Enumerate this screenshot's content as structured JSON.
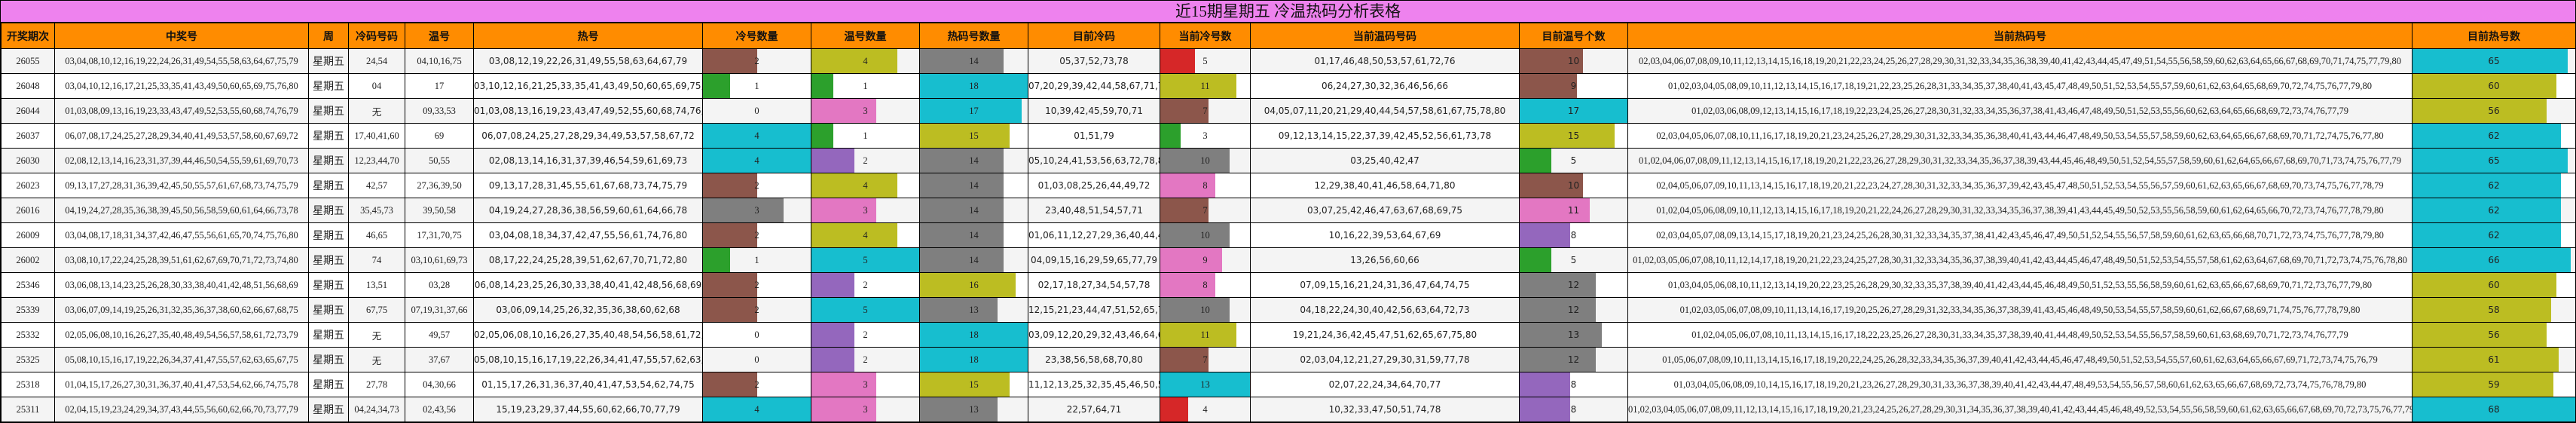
{
  "title": "近15期星期五 冷温热码分析表格",
  "columns": [
    "开奖期次",
    "中奖号",
    "周",
    "冷码号码",
    "温号",
    "热号",
    "冷号数量",
    "温号数量",
    "热码号数量",
    "目前冷码",
    "当前冷号数",
    "当前温码号码",
    "目前温号个数",
    "当前热码号",
    "目前热号数"
  ],
  "bar_max": {
    "cold_count": 4,
    "warm_count": 5,
    "hot_count": 18,
    "cur_cold_count": 13,
    "cur_warm_count": 17,
    "cur_hot_count": 68
  },
  "palette": {
    "green": "#2ca02c",
    "brown": "#8c564b",
    "gray": "#7f7f7f",
    "cyan": "#17becf",
    "olive": "#bcbd22",
    "pink": "#e377c2",
    "purple": "#9467bd",
    "red": "#d62728"
  },
  "rows": [
    {
      "period": "26055",
      "winning": "03,04,08,10,12,16,19,22,24,26,31,49,54,55,58,63,64,67,75,79",
      "week": "星期五",
      "cold_nums": "24,54",
      "warm_nums": "04,10,16,75",
      "hot_nums": "03,08,12,19,22,26,31,49,55,58,63,64,67,79",
      "cold_count": 2,
      "cold_color": "#8c564b",
      "warm_count": 4,
      "warm_color": "#bcbd22",
      "hot_count": 14,
      "hot_color": "#7f7f7f",
      "cur_cold": "05,37,52,73,78",
      "cur_cold_count": 5,
      "cur_cold_color": "#d62728",
      "cur_warm": "01,17,46,48,50,53,57,61,72,76",
      "cur_warm_count": 10,
      "cur_warm_color": "#8c564b",
      "cur_hot": "02,03,04,06,07,08,09,10,11,12,13,14,15,16,18,19,20,21,22,23,24,25,26,27,28,29,30,31,32,33,34,35,36,38,39,40,41,42,43,44,45,47,49,51,54,55,56,58,59,60,62,63,64,65,66,67,68,69,70,71,74,75,77,79,80",
      "cur_hot_count": 65,
      "cur_hot_color": "#17becf"
    },
    {
      "period": "26048",
      "winning": "03,04,10,12,16,17,21,25,33,35,41,43,49,50,60,65,69,75,76,80",
      "week": "星期五",
      "cold_nums": "04",
      "warm_nums": "17",
      "hot_nums": "03,10,12,16,21,25,33,35,41,43,49,50,60,65,69,75,76,80",
      "cold_count": 1,
      "cold_color": "#2ca02c",
      "warm_count": 1,
      "warm_color": "#2ca02c",
      "hot_count": 18,
      "hot_color": "#17becf",
      "cur_cold": "07,20,29,39,42,44,58,67,71,73,78",
      "cur_cold_count": 11,
      "cur_cold_color": "#bcbd22",
      "cur_warm": "06,24,27,30,32,36,46,56,66",
      "cur_warm_count": 9,
      "cur_warm_color": "#8c564b",
      "cur_hot": "01,02,03,04,05,08,09,10,11,12,13,14,15,16,17,18,19,21,22,23,25,26,28,31,33,34,35,37,38,40,41,43,45,47,48,49,50,51,52,53,54,55,57,59,60,61,62,63,64,65,68,69,70,72,74,75,76,77,79,80",
      "cur_hot_count": 60,
      "cur_hot_color": "#bcbd22"
    },
    {
      "period": "26044",
      "winning": "01,03,08,09,13,16,19,23,33,43,47,49,52,53,55,60,68,74,76,79",
      "week": "星期五",
      "cold_nums": "无",
      "warm_nums": "09,33,53",
      "hot_nums": "01,03,08,13,16,19,23,43,47,49,52,55,60,68,74,76,79",
      "cold_count": 0,
      "cold_color": "#ffffff",
      "warm_count": 3,
      "warm_color": "#e377c2",
      "hot_count": 17,
      "hot_color": "#17becf",
      "cur_cold": "10,39,42,45,59,70,71",
      "cur_cold_count": 7,
      "cur_cold_color": "#8c564b",
      "cur_warm": "04,05,07,11,20,21,29,40,44,54,57,58,61,67,75,78,80",
      "cur_warm_count": 17,
      "cur_warm_color": "#17becf",
      "cur_hot": "01,02,03,06,08,09,12,13,14,15,16,17,18,19,22,23,24,25,26,27,28,30,31,32,33,34,35,36,37,38,41,43,46,47,48,49,50,51,52,53,55,56,60,62,63,64,65,66,68,69,72,73,74,76,77,79",
      "cur_hot_count": 56,
      "cur_hot_color": "#bcbd22"
    },
    {
      "period": "26037",
      "winning": "06,07,08,17,24,25,27,28,29,34,40,41,49,53,57,58,60,67,69,72",
      "week": "星期五",
      "cold_nums": "17,40,41,60",
      "warm_nums": "69",
      "hot_nums": "06,07,08,24,25,27,28,29,34,49,53,57,58,67,72",
      "cold_count": 4,
      "cold_color": "#17becf",
      "warm_count": 1,
      "warm_color": "#2ca02c",
      "hot_count": 15,
      "hot_color": "#bcbd22",
      "cur_cold": "01,51,79",
      "cur_cold_count": 3,
      "cur_cold_color": "#2ca02c",
      "cur_warm": "09,12,13,14,15,22,37,39,42,45,52,56,61,73,78",
      "cur_warm_count": 15,
      "cur_warm_color": "#bcbd22",
      "cur_hot": "02,03,04,05,06,07,08,10,11,16,17,18,19,20,21,23,24,25,26,27,28,29,30,31,32,33,34,35,36,38,40,41,43,44,46,47,48,49,50,53,54,55,57,58,59,60,62,63,64,65,66,67,68,69,70,71,72,74,75,76,77,80",
      "cur_hot_count": 62,
      "cur_hot_color": "#17becf"
    },
    {
      "period": "26030",
      "winning": "02,08,12,13,14,16,23,31,37,39,44,46,50,54,55,59,61,69,70,73",
      "week": "星期五",
      "cold_nums": "12,23,44,70",
      "warm_nums": "50,55",
      "hot_nums": "02,08,13,14,16,31,37,39,46,54,59,61,69,73",
      "cold_count": 4,
      "cold_color": "#17becf",
      "warm_count": 2,
      "warm_color": "#9467bd",
      "hot_count": 14,
      "hot_color": "#7f7f7f",
      "cur_cold": "05,10,24,41,53,56,63,72,78,80",
      "cur_cold_count": 10,
      "cur_cold_color": "#7f7f7f",
      "cur_warm": "03,25,40,42,47",
      "cur_warm_count": 5,
      "cur_warm_color": "#2ca02c",
      "cur_hot": "01,02,04,06,07,08,09,11,12,13,14,15,16,17,18,19,20,21,22,23,26,27,28,29,30,31,32,33,34,35,36,37,38,39,43,44,45,46,48,49,50,51,52,54,55,57,58,59,60,61,62,64,65,66,67,68,69,70,71,73,74,75,76,77,79",
      "cur_hot_count": 65,
      "cur_hot_color": "#17becf"
    },
    {
      "period": "26023",
      "winning": "09,13,17,27,28,31,36,39,42,45,50,55,57,61,67,68,73,74,75,79",
      "week": "星期五",
      "cold_nums": "42,57",
      "warm_nums": "27,36,39,50",
      "hot_nums": "09,13,17,28,31,45,55,61,67,68,73,74,75,79",
      "cold_count": 2,
      "cold_color": "#8c564b",
      "warm_count": 4,
      "warm_color": "#bcbd22",
      "hot_count": 14,
      "hot_color": "#7f7f7f",
      "cur_cold": "01,03,08,25,26,44,49,72",
      "cur_cold_count": 8,
      "cur_cold_color": "#e377c2",
      "cur_warm": "12,29,38,40,41,46,58,64,71,80",
      "cur_warm_count": 10,
      "cur_warm_color": "#8c564b",
      "cur_hot": "02,04,05,06,07,09,10,11,13,14,15,16,17,18,19,20,21,22,23,24,27,28,30,31,32,33,34,35,36,37,39,42,43,45,47,48,50,51,52,53,54,55,56,57,59,60,61,62,63,65,66,67,68,69,70,73,74,75,76,77,78,79",
      "cur_hot_count": 62,
      "cur_hot_color": "#17becf"
    },
    {
      "period": "26016",
      "winning": "04,19,24,27,28,35,36,38,39,45,50,56,58,59,60,61,64,66,73,78",
      "week": "星期五",
      "cold_nums": "35,45,73",
      "warm_nums": "39,50,58",
      "hot_nums": "04,19,24,27,28,36,38,56,59,60,61,64,66,78",
      "cold_count": 3,
      "cold_color": "#7f7f7f",
      "warm_count": 3,
      "warm_color": "#e377c2",
      "hot_count": 14,
      "hot_color": "#7f7f7f",
      "cur_cold": "23,40,48,51,54,57,71",
      "cur_cold_count": 7,
      "cur_cold_color": "#8c564b",
      "cur_warm": "03,07,25,42,46,47,63,67,68,69,75",
      "cur_warm_count": 11,
      "cur_warm_color": "#e377c2",
      "cur_hot": "01,02,04,05,06,08,09,10,11,12,13,14,15,16,17,18,19,20,21,22,24,26,27,28,29,30,31,32,33,34,35,36,37,38,39,41,43,44,45,49,50,52,53,55,56,58,59,60,61,62,64,65,66,70,72,73,74,76,77,78,79,80",
      "cur_hot_count": 62,
      "cur_hot_color": "#17becf"
    },
    {
      "period": "26009",
      "winning": "03,04,08,17,18,31,34,37,42,46,47,55,56,61,65,70,74,75,76,80",
      "week": "星期五",
      "cold_nums": "46,65",
      "warm_nums": "17,31,70,75",
      "hot_nums": "03,04,08,18,34,37,42,47,55,56,61,74,76,80",
      "cold_count": 2,
      "cold_color": "#8c564b",
      "warm_count": 4,
      "warm_color": "#bcbd22",
      "hot_count": 14,
      "hot_color": "#7f7f7f",
      "cur_cold": "01,06,11,12,27,29,36,40,44,48",
      "cur_cold_count": 10,
      "cur_cold_color": "#7f7f7f",
      "cur_warm": "10,16,22,39,53,64,67,69",
      "cur_warm_count": 8,
      "cur_warm_color": "#9467bd",
      "cur_hot": "02,03,04,05,07,08,09,13,14,15,17,18,19,20,21,23,24,25,26,28,30,31,32,33,34,35,37,38,41,42,43,45,46,47,49,50,51,52,54,55,56,57,58,59,60,61,62,63,65,66,68,70,71,72,73,74,75,76,77,78,79,80",
      "cur_hot_count": 62,
      "cur_hot_color": "#17becf"
    },
    {
      "period": "26002",
      "winning": "03,08,10,17,22,24,25,28,39,51,61,62,67,69,70,71,72,73,74,80",
      "week": "星期五",
      "cold_nums": "74",
      "warm_nums": "03,10,61,69,73",
      "hot_nums": "08,17,22,24,25,28,39,51,62,67,70,71,72,80",
      "cold_count": 1,
      "cold_color": "#2ca02c",
      "warm_count": 5,
      "warm_color": "#17becf",
      "hot_count": 14,
      "hot_color": "#7f7f7f",
      "cur_cold": "04,09,15,16,29,59,65,77,79",
      "cur_cold_count": 9,
      "cur_cold_color": "#e377c2",
      "cur_warm": "13,26,56,60,66",
      "cur_warm_count": 5,
      "cur_warm_color": "#2ca02c",
      "cur_hot": "01,02,03,05,06,07,08,10,11,12,14,17,18,19,20,21,22,23,24,25,27,28,30,31,32,33,34,35,36,37,38,39,40,41,42,43,44,45,46,47,48,49,50,51,52,53,54,55,57,58,61,62,63,64,67,68,69,70,71,72,73,74,75,76,78,80",
      "cur_hot_count": 66,
      "cur_hot_color": "#17becf"
    },
    {
      "period": "25346",
      "winning": "03,06,08,13,14,23,25,26,28,30,33,38,40,41,42,48,51,56,68,69",
      "week": "星期五",
      "cold_nums": "13,51",
      "warm_nums": "03,28",
      "hot_nums": "06,08,14,23,25,26,30,33,38,40,41,42,48,56,68,69",
      "cold_count": 2,
      "cold_color": "#8c564b",
      "warm_count": 2,
      "warm_color": "#9467bd",
      "hot_count": 16,
      "hot_color": "#bcbd22",
      "cur_cold": "02,17,18,27,34,54,57,78",
      "cur_cold_count": 8,
      "cur_cold_color": "#e377c2",
      "cur_warm": "07,09,15,16,21,24,31,36,47,64,74,75",
      "cur_warm_count": 12,
      "cur_warm_color": "#7f7f7f",
      "cur_hot": "01,03,04,05,06,08,10,11,12,13,14,19,20,22,23,25,26,28,29,30,32,33,35,37,38,39,40,41,42,43,44,45,46,48,49,50,51,52,53,55,56,58,59,60,61,62,63,65,66,67,68,69,70,71,72,73,76,77,79,80",
      "cur_hot_count": 60,
      "cur_hot_color": "#bcbd22"
    },
    {
      "period": "25339",
      "winning": "03,06,07,09,14,19,25,26,31,32,35,36,37,38,60,62,66,67,68,75",
      "week": "星期五",
      "cold_nums": "67,75",
      "warm_nums": "07,19,31,37,66",
      "hot_nums": "03,06,09,14,25,26,32,35,36,38,60,62,68",
      "cold_count": 2,
      "cold_color": "#8c564b",
      "warm_count": 5,
      "warm_color": "#17becf",
      "hot_count": 13,
      "hot_color": "#7f7f7f",
      "cur_cold": "12,15,21,23,44,47,51,52,65,70",
      "cur_cold_count": 10,
      "cur_cold_color": "#7f7f7f",
      "cur_warm": "04,18,22,24,30,40,42,56,63,64,72,73",
      "cur_warm_count": 12,
      "cur_warm_color": "#7f7f7f",
      "cur_hot": "01,02,03,05,06,07,08,09,10,11,13,14,16,17,19,20,25,26,27,28,29,31,32,33,34,35,36,37,38,39,41,43,45,46,48,49,50,53,54,55,57,58,59,60,61,62,66,67,68,69,71,74,75,76,77,78,79,80",
      "cur_hot_count": 58,
      "cur_hot_color": "#bcbd22"
    },
    {
      "period": "25332",
      "winning": "02,05,06,08,10,16,26,27,35,40,48,49,54,56,57,58,61,72,73,79",
      "week": "星期五",
      "cold_nums": "无",
      "warm_nums": "49,57",
      "hot_nums": "02,05,06,08,10,16,26,27,35,40,48,54,56,58,61,72,73,79",
      "cold_count": 0,
      "cold_color": "#ffffff",
      "warm_count": 2,
      "warm_color": "#9467bd",
      "hot_count": 18,
      "hot_color": "#17becf",
      "cur_cold": "03,09,12,20,29,32,43,46,64,66,78",
      "cur_cold_count": 11,
      "cur_cold_color": "#bcbd22",
      "cur_warm": "19,21,24,36,42,45,47,51,62,65,67,75,80",
      "cur_warm_count": 13,
      "cur_warm_color": "#7f7f7f",
      "cur_hot": "01,02,04,05,06,07,08,10,11,13,14,15,16,17,18,22,23,25,26,27,28,30,31,33,34,35,37,38,39,40,41,44,48,49,50,52,53,54,55,56,57,58,59,60,61,63,68,69,70,71,72,73,74,76,77,79",
      "cur_hot_count": 56,
      "cur_hot_color": "#bcbd22"
    },
    {
      "period": "25325",
      "winning": "05,08,10,15,16,17,19,22,26,34,37,41,47,55,57,62,63,65,67,75",
      "week": "星期五",
      "cold_nums": "无",
      "warm_nums": "37,67",
      "hot_nums": "05,08,10,15,16,17,19,22,26,34,41,47,55,57,62,63,65,75",
      "cold_count": 0,
      "cold_color": "#ffffff",
      "warm_count": 2,
      "warm_color": "#9467bd",
      "hot_count": 18,
      "hot_color": "#17becf",
      "cur_cold": "23,38,56,58,68,70,80",
      "cur_cold_count": 7,
      "cur_cold_color": "#8c564b",
      "cur_warm": "02,03,04,12,21,27,29,30,31,59,77,78",
      "cur_warm_count": 12,
      "cur_warm_color": "#7f7f7f",
      "cur_hot": "01,05,06,07,08,09,10,11,13,14,15,16,17,18,19,20,22,24,25,26,28,32,33,34,35,36,37,39,40,41,42,43,44,45,46,47,48,49,50,51,52,53,54,55,57,60,61,62,63,64,65,66,67,69,71,72,73,74,75,76,79",
      "cur_hot_count": 61,
      "cur_hot_color": "#bcbd22"
    },
    {
      "period": "25318",
      "winning": "01,04,15,17,26,27,30,31,36,37,40,41,47,53,54,62,66,74,75,78",
      "week": "星期五",
      "cold_nums": "27,78",
      "warm_nums": "04,30,66",
      "hot_nums": "01,15,17,26,31,36,37,40,41,47,53,54,62,74,75",
      "cold_count": 2,
      "cold_color": "#8c564b",
      "warm_count": 3,
      "warm_color": "#e377c2",
      "hot_count": 15,
      "hot_color": "#bcbd22",
      "cur_cold": "11,12,13,25,32,35,45,46,50,51,52,59,71",
      "cur_cold_count": 13,
      "cur_cold_color": "#17becf",
      "cur_warm": "02,07,22,24,34,64,70,77",
      "cur_warm_count": 8,
      "cur_warm_color": "#9467bd",
      "cur_hot": "01,03,04,05,06,08,09,10,14,15,16,17,18,19,20,21,23,26,27,28,29,30,31,33,36,37,38,39,40,41,42,43,44,47,48,49,53,54,55,56,57,58,60,61,62,63,65,66,67,68,69,72,73,74,75,76,78,79,80",
      "cur_hot_count": 59,
      "cur_hot_color": "#bcbd22"
    },
    {
      "period": "25311",
      "winning": "02,04,15,19,23,24,29,34,37,43,44,55,56,60,62,66,70,73,77,79",
      "week": "星期五",
      "cold_nums": "04,24,34,73",
      "warm_nums": "02,43,56",
      "hot_nums": "15,19,23,29,37,44,55,60,62,66,70,77,79",
      "cold_count": 4,
      "cold_color": "#17becf",
      "warm_count": 3,
      "warm_color": "#e377c2",
      "hot_count": 13,
      "hot_color": "#7f7f7f",
      "cur_cold": "22,57,64,71",
      "cur_cold_count": 4,
      "cur_cold_color": "#d62728",
      "cur_warm": "10,32,33,47,50,51,74,78",
      "cur_warm_count": 8,
      "cur_warm_color": "#9467bd",
      "cur_hot": "01,02,03,04,05,06,07,08,09,11,12,13,14,15,16,17,18,19,20,21,23,24,25,26,27,28,29,30,31,34,35,36,37,38,39,40,41,42,43,44,45,46,48,49,52,53,54,55,56,58,59,60,61,62,63,65,66,67,68,69,70,72,73,75,76,77,79,80",
      "cur_hot_count": 68,
      "cur_hot_color": "#17becf"
    }
  ]
}
